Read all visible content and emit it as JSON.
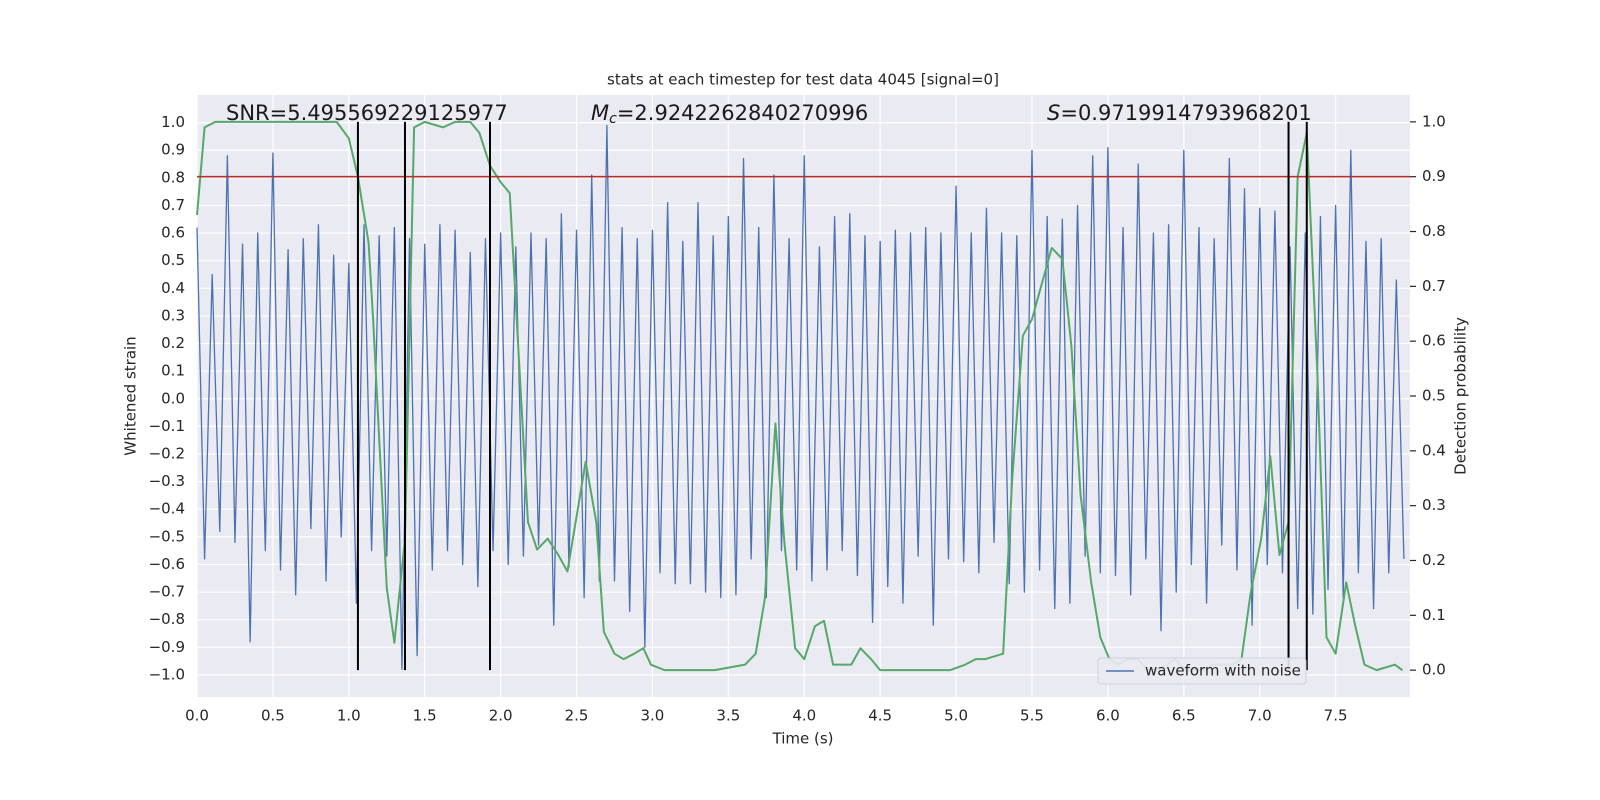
{
  "chart_data": {
    "type": "line",
    "title": "stats at each timestep for test data 4045 [signal=0]",
    "x_label": "Time (s)",
    "y_label": "Whitened strain",
    "y2_label": "Detection probability",
    "xlim": [
      0,
      7.99
    ],
    "ylim": [
      -1.08,
      1.1
    ],
    "y2lim": [
      -0.049,
      1.049
    ],
    "xticks": [
      {
        "value": 0,
        "label": "0.0"
      },
      0.5,
      {
        "value": 1,
        "label": "1.0"
      },
      1.5,
      {
        "value": 2,
        "label": "2.0"
      },
      2.5,
      {
        "value": 3,
        "label": "3.0"
      },
      3.5,
      {
        "value": 4,
        "label": "4.0"
      },
      4.5,
      {
        "value": 5,
        "label": "5.0"
      },
      5.5,
      {
        "value": 6,
        "label": "6.0"
      },
      6.5,
      {
        "value": 7,
        "label": "7.0"
      },
      7.5
    ],
    "yticks": [
      {
        "value": -1,
        "label": "−1.0"
      },
      {
        "value": -0.9,
        "label": "−0.9"
      },
      {
        "value": -0.8,
        "label": "−0.8"
      },
      {
        "value": -0.7,
        "label": "−0.7"
      },
      {
        "value": -0.6,
        "label": "−0.6"
      },
      {
        "value": -0.5,
        "label": "−0.5"
      },
      {
        "value": -0.4,
        "label": "−0.4"
      },
      {
        "value": -0.3,
        "label": "−0.3"
      },
      {
        "value": -0.2,
        "label": "−0.2"
      },
      {
        "value": -0.1,
        "label": "−0.1"
      },
      {
        "value": 0,
        "label": "0.0"
      },
      0.1,
      0.2,
      0.3,
      0.4,
      0.5,
      0.6,
      0.7,
      0.8,
      0.9,
      {
        "value": 1,
        "label": "1.0"
      }
    ],
    "y2ticks": [
      {
        "value": 0,
        "label": "0.0"
      },
      0.1,
      0.2,
      0.3,
      0.4,
      0.5,
      0.6,
      0.7,
      0.8,
      0.9,
      {
        "value": 1,
        "label": "1.0"
      }
    ],
    "grid": true,
    "legend": "lower right",
    "annotations": [
      {
        "text": "SNR=5.495569229125977"
      },
      {
        "symbol": "M",
        "subscript": "c",
        "text": "=2.9242262840270996"
      },
      {
        "symbol": "S",
        "text": "=0.9719914793968201"
      }
    ],
    "x": [
      0,
      0.05,
      0.1,
      0.15,
      0.2,
      0.25,
      0.3,
      0.35,
      0.4,
      0.45,
      0.5,
      0.55,
      0.6,
      0.65,
      0.7,
      0.75,
      0.8,
      0.85,
      0.9,
      0.95,
      1,
      1.05,
      1.1,
      1.15,
      1.2,
      1.25,
      1.3,
      1.35,
      1.4,
      1.45,
      1.5,
      1.55,
      1.6,
      1.65,
      1.7,
      1.75,
      1.8,
      1.85,
      1.9,
      1.95,
      2,
      2.05,
      2.1,
      2.15,
      2.2,
      2.25,
      2.3,
      2.35,
      2.4,
      2.45,
      2.5,
      2.55,
      2.6,
      2.65,
      2.7,
      2.75,
      2.8,
      2.85,
      2.9,
      2.95,
      3,
      3.05,
      3.1,
      3.15,
      3.2,
      3.25,
      3.3,
      3.35,
      3.4,
      3.45,
      3.5,
      3.55,
      3.6,
      3.65,
      3.7,
      3.75,
      3.8,
      3.85,
      3.9,
      3.95,
      4,
      4.05,
      4.1,
      4.15,
      4.2,
      4.25,
      4.3,
      4.35,
      4.4,
      4.45,
      4.5,
      4.55,
      4.6,
      4.65,
      4.7,
      4.75,
      4.8,
      4.85,
      4.9,
      4.95,
      5,
      5.05,
      5.1,
      5.15,
      5.2,
      5.25,
      5.3,
      5.35,
      5.4,
      5.45,
      5.5,
      5.55,
      5.6,
      5.65,
      5.7,
      5.75,
      5.8,
      5.85,
      5.9,
      5.95,
      6,
      6.05,
      6.1,
      6.15,
      6.2,
      6.25,
      6.3,
      6.35,
      6.4,
      6.45,
      6.5,
      6.55,
      6.6,
      6.65,
      6.7,
      6.75,
      6.8,
      6.85,
      6.9,
      6.95,
      7,
      7.05,
      7.1,
      7.15,
      7.2,
      7.25,
      7.3,
      7.35,
      7.4,
      7.45,
      7.5,
      7.55,
      7.6,
      7.65,
      7.7,
      7.75,
      7.8,
      7.85,
      7.9,
      7.95
    ],
    "series": [
      {
        "name": "waveform with noise",
        "color": "#4c72b0",
        "values": [
          0.62,
          -0.58,
          0.45,
          -0.48,
          0.88,
          -0.52,
          0.56,
          -0.88,
          0.6,
          -0.55,
          0.89,
          -0.62,
          0.54,
          -0.71,
          0.58,
          -0.47,
          0.63,
          -0.66,
          0.52,
          -0.5,
          0.49,
          -0.74,
          0.63,
          -0.55,
          0.59,
          -0.57,
          0.62,
          -0.98,
          0.58,
          -0.93,
          0.56,
          -0.62,
          0.63,
          -0.55,
          0.61,
          -0.6,
          0.53,
          -0.68,
          0.58,
          -0.55,
          0.6,
          -0.6,
          0.55,
          -0.57,
          0.6,
          -0.53,
          0.58,
          -0.82,
          0.67,
          -0.61,
          0.61,
          -0.72,
          0.81,
          -0.66,
          0.99,
          -0.66,
          0.62,
          -0.77,
          0.58,
          -0.9,
          0.61,
          -0.63,
          0.71,
          -0.67,
          0.57,
          -0.67,
          0.71,
          -0.7,
          0.59,
          -0.72,
          0.66,
          -0.71,
          0.87,
          -0.58,
          0.62,
          -0.72,
          0.81,
          -0.55,
          0.58,
          -0.62,
          0.88,
          -0.66,
          0.55,
          -0.62,
          0.66,
          -0.55,
          0.67,
          -0.64,
          0.59,
          -0.81,
          0.57,
          -0.68,
          0.61,
          -0.74,
          0.6,
          -0.57,
          0.62,
          -0.82,
          0.6,
          -0.58,
          0.77,
          -0.59,
          0.6,
          -0.63,
          0.69,
          -0.52,
          0.6,
          -0.67,
          0.59,
          -0.7,
          0.9,
          -0.62,
          0.66,
          -0.76,
          0.65,
          -0.74,
          0.7,
          -0.57,
          0.88,
          -0.63,
          0.91,
          -0.64,
          0.62,
          -0.71,
          0.85,
          -0.58,
          0.6,
          -0.84,
          0.63,
          -0.7,
          0.9,
          -0.6,
          0.62,
          -0.74,
          0.58,
          -0.53,
          0.87,
          -0.62,
          0.76,
          -0.82,
          0.69,
          -0.6,
          0.68,
          -0.63,
          0.55,
          -0.76,
          0.6,
          -0.78,
          0.66,
          -0.69,
          0.7,
          -0.72,
          0.9,
          -0.63,
          0.57,
          -0.76,
          0.58,
          -0.63,
          0.43,
          -0.58
        ]
      },
      {
        "color": "#55a868",
        "axis": "y2",
        "x": [
          0,
          0.05,
          0.12,
          0.88,
          0.92,
          1,
          1.06,
          1.13,
          1.16,
          1.25,
          1.3,
          1.37,
          1.43,
          1.5,
          1.62,
          1.7,
          1.8,
          1.86,
          1.93,
          2,
          2.06,
          2.18,
          2.24,
          2.31,
          2.38,
          2.44,
          2.56,
          2.63,
          2.68,
          2.75,
          2.81,
          2.88,
          2.94,
          2.99,
          3.08,
          3.25,
          3.41,
          3.61,
          3.68,
          3.74,
          3.81,
          3.87,
          3.94,
          4,
          4.07,
          4.13,
          4.19,
          4.25,
          4.31,
          4.37,
          4.44,
          4.5,
          4.7,
          4.96,
          5.06,
          5.13,
          5.19,
          5.31,
          5.37,
          5.44,
          5.5,
          5.57,
          5.63,
          5.7,
          5.76,
          5.82,
          5.89,
          5.95,
          6.01,
          6.07,
          6.13,
          6.2,
          6.26,
          6.32,
          6.39,
          6.44,
          6.51,
          6.57,
          6.63,
          6.69,
          6.76,
          6.82,
          6.88,
          6.94,
          7.01,
          7.07,
          7.13,
          7.19,
          7.25,
          7.31,
          7.38,
          7.44,
          7.5,
          7.57,
          7.63,
          7.69,
          7.77,
          7.89,
          7.94
        ],
        "values": [
          0.83,
          0.99,
          1,
          1,
          1,
          0.97,
          0.9,
          0.78,
          0.64,
          0.15,
          0.05,
          0.24,
          0.99,
          1,
          0.99,
          1,
          1,
          0.98,
          0.92,
          0.89,
          0.87,
          0.27,
          0.22,
          0.24,
          0.21,
          0.18,
          0.38,
          0.27,
          0.07,
          0.03,
          0.02,
          0.03,
          0.04,
          0.01,
          0,
          0,
          0,
          0.01,
          0.03,
          0.13,
          0.45,
          0.23,
          0.04,
          0.02,
          0.08,
          0.09,
          0.01,
          0.01,
          0.01,
          0.04,
          0.02,
          0,
          0,
          0,
          0.01,
          0.02,
          0.02,
          0.03,
          0.35,
          0.61,
          0.64,
          0.71,
          0.77,
          0.75,
          0.59,
          0.32,
          0.16,
          0.06,
          0.02,
          0.01,
          0.02,
          0.02,
          0,
          0,
          0.01,
          0.02,
          0,
          0,
          0,
          0.01,
          0.01,
          0.01,
          0.02,
          0.14,
          0.24,
          0.39,
          0.21,
          0.27,
          0.9,
          0.98,
          0.54,
          0.06,
          0.03,
          0.16,
          0.08,
          0.01,
          0,
          0.01,
          0
        ]
      }
    ],
    "threshold": {
      "value": 0.9,
      "axis": "y2",
      "color": "#b8302c"
    },
    "vlines": {
      "x": [
        1.06,
        1.37,
        1.93,
        7.19,
        7.31
      ],
      "ymin": 0,
      "ymax": 1,
      "axis": "y2",
      "color": "#000000"
    }
  }
}
